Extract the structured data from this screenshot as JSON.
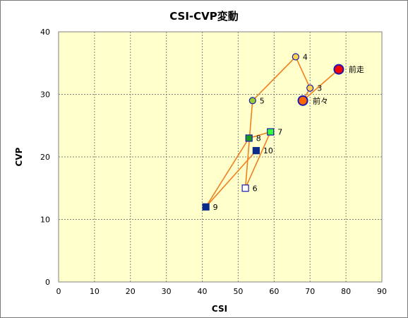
{
  "chart_data": {
    "type": "scatter",
    "title": "CSI-CVP変動",
    "xlabel": "CSI",
    "ylabel": "CVP",
    "xlim": [
      0,
      90
    ],
    "ylim": [
      0,
      40
    ],
    "xticks": [
      0,
      10,
      20,
      30,
      40,
      50,
      60,
      70,
      80,
      90
    ],
    "yticks": [
      0,
      10,
      20,
      30,
      40
    ],
    "grid": true,
    "plot_background": "#ffffcc",
    "line_color": "#f08020",
    "path_order": [
      "前走",
      "前々",
      "3",
      "4",
      "5",
      "6",
      "7",
      "8",
      "9",
      "10"
    ],
    "points": [
      {
        "label": "前走",
        "x": 78,
        "y": 34,
        "fill": "#ff0000",
        "stroke": "#1a1ab0",
        "size": "large",
        "shape": "circle"
      },
      {
        "label": "前々",
        "x": 68,
        "y": 29,
        "fill": "#ff6600",
        "stroke": "#1a1ab0",
        "size": "large",
        "shape": "circle"
      },
      {
        "label": "3",
        "x": 70,
        "y": 31,
        "fill": "#ffd24d",
        "stroke": "#1a1ab0",
        "size": "small",
        "shape": "circle"
      },
      {
        "label": "4",
        "x": 66,
        "y": 36,
        "fill": "#ffd24d",
        "stroke": "#1a1ab0",
        "size": "small",
        "shape": "circle"
      },
      {
        "label": "5",
        "x": 54,
        "y": 29,
        "fill": "#99cc33",
        "stroke": "#1a1ab0",
        "size": "small",
        "shape": "circle"
      },
      {
        "label": "6",
        "x": 52,
        "y": 15,
        "fill": "#ffffff",
        "stroke": "#1a1ab0",
        "size": "small",
        "shape": "square"
      },
      {
        "label": "7",
        "x": 59,
        "y": 24,
        "fill": "#33ff33",
        "stroke": "#1a1ab0",
        "size": "small",
        "shape": "square"
      },
      {
        "label": "8",
        "x": 53,
        "y": 23,
        "fill": "#1a9a1a",
        "stroke": "#1a1ab0",
        "size": "small",
        "shape": "square"
      },
      {
        "label": "9",
        "x": 41,
        "y": 12,
        "fill": "#0a2a8a",
        "stroke": "#0a2a8a",
        "size": "small",
        "shape": "square"
      },
      {
        "label": "10",
        "x": 55,
        "y": 21,
        "fill": "#0a2a8a",
        "stroke": "#0a2a8a",
        "size": "small",
        "shape": "square"
      }
    ]
  }
}
